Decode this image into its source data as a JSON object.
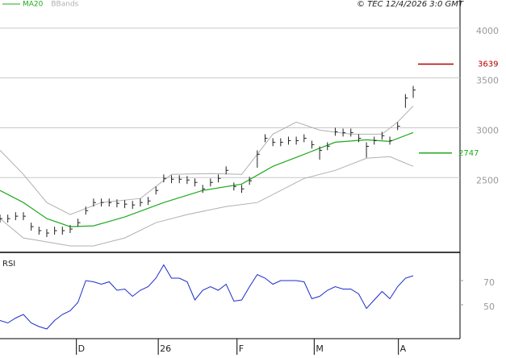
{
  "chart_data": [
    {
      "type": "ohlc",
      "copyright": "© TEC 12/4/2026 3:0 GMT",
      "x": [
        0,
        1,
        2,
        3,
        4,
        5,
        6,
        7,
        8,
        9,
        10,
        11,
        12,
        13,
        14,
        15,
        16,
        17,
        18,
        19,
        20,
        21,
        22,
        23,
        24,
        25,
        26,
        27,
        28,
        29,
        30,
        31,
        32,
        33,
        34,
        35,
        36,
        37,
        38,
        39,
        40,
        41,
        42,
        43,
        44,
        45,
        46,
        47,
        48,
        49,
        50,
        51,
        52,
        53
      ],
      "high": [
        2129,
        2129,
        2153,
        2153,
        2048,
        2008,
        1984,
        2008,
        2008,
        2024,
        2088,
        2209,
        2290,
        2290,
        2290,
        2282,
        2274,
        2266,
        2290,
        2306,
        2411,
        2532,
        2524,
        2524,
        2516,
        2492,
        2427,
        2492,
        2532,
        2613,
        2451,
        2427,
        2508,
        2774,
        2935,
        2895,
        2895,
        2911,
        2911,
        2935,
        2871,
        2814,
        2855,
        3000,
        2992,
        2992,
        2935,
        2854,
        2911,
        2960,
        2911,
        3056,
        3338,
        3420
      ],
      "low": [
        2049,
        2049,
        2073,
        2073,
        1968,
        1928,
        1904,
        1928,
        1928,
        1944,
        2008,
        2129,
        2210,
        2210,
        2210,
        2202,
        2194,
        2186,
        2210,
        2226,
        2331,
        2452,
        2444,
        2444,
        2436,
        2412,
        2347,
        2412,
        2452,
        2533,
        2371,
        2347,
        2428,
        2600,
        2855,
        2815,
        2815,
        2831,
        2831,
        2855,
        2791,
        2680,
        2775,
        2920,
        2912,
        2912,
        2855,
        2700,
        2831,
        2880,
        2831,
        2976,
        3200,
        3300
      ],
      "close": [
        2089,
        2089,
        2113,
        2113,
        2008,
        1968,
        1944,
        1968,
        1968,
        1984,
        2048,
        2169,
        2250,
        2250,
        2250,
        2242,
        2234,
        2226,
        2250,
        2266,
        2371,
        2492,
        2484,
        2484,
        2476,
        2452,
        2387,
        2452,
        2492,
        2573,
        2411,
        2387,
        2468,
        2734,
        2895,
        2855,
        2855,
        2871,
        2871,
        2895,
        2831,
        2774,
        2815,
        2960,
        2952,
        2952,
        2895,
        2814,
        2871,
        2920,
        2871,
        3016,
        3298,
        3379
      ],
      "bar_color": "#222222",
      "ma": {
        "name": "MA20",
        "color": "#1faa1f",
        "x": [
          0,
          3,
          6,
          9,
          12,
          16,
          21,
          26,
          31,
          35,
          39,
          43,
          47,
          50,
          53
        ],
        "values": [
          2371,
          2250,
          2089,
          2008,
          2016,
          2105,
          2250,
          2371,
          2435,
          2613,
          2734,
          2855,
          2879,
          2863,
          2952
        ]
      },
      "bands": {
        "name": "BBands",
        "color": "#b0b0b0",
        "upper": {
          "x": [
            0,
            3,
            6,
            9,
            13,
            18,
            22,
            27,
            31,
            35,
            38,
            41,
            45,
            49,
            51,
            53
          ],
          "values": [
            2774,
            2532,
            2250,
            2129,
            2250,
            2290,
            2532,
            2540,
            2532,
            2936,
            3057,
            2976,
            2936,
            2936,
            3057,
            3218
          ]
        },
        "lower": {
          "x": [
            0,
            3,
            6,
            9,
            12,
            16,
            20,
            24,
            29,
            33,
            39,
            43,
            47,
            50,
            53
          ],
          "values": [
            2089,
            1895,
            1855,
            1815,
            1815,
            1895,
            2048,
            2129,
            2210,
            2250,
            2492,
            2573,
            2694,
            2710,
            2613
          ]
        }
      },
      "levels": [
        {
          "value": 3639,
          "color": "#b00000"
        },
        {
          "value": 2747,
          "color": "#1faa1f"
        }
      ],
      "xlim": [
        0,
        59
      ],
      "ylim": [
        1750,
        4282
      ],
      "yticks": [
        2500,
        3000,
        3500,
        4000
      ],
      "grid": true
    },
    {
      "type": "line",
      "title": "RSI",
      "x": [
        0,
        1,
        2,
        3,
        4,
        5,
        6,
        7,
        8,
        9,
        10,
        11,
        12,
        13,
        14,
        15,
        16,
        17,
        18,
        19,
        20,
        21,
        22,
        23,
        24,
        25,
        26,
        27,
        28,
        29,
        30,
        31,
        32,
        33,
        34,
        35,
        36,
        37,
        38,
        39,
        40,
        41,
        42,
        43,
        44,
        45,
        46,
        47,
        48,
        49,
        50,
        51,
        52,
        53
      ],
      "values": [
        37,
        35,
        39,
        42,
        35,
        32,
        30,
        37,
        42,
        45,
        52,
        70,
        69,
        67,
        69,
        62,
        63,
        57,
        62,
        65,
        72,
        83,
        72,
        72,
        69,
        54,
        62,
        65,
        62,
        67,
        53,
        54,
        65,
        75,
        72,
        67,
        70,
        70,
        70,
        69,
        55,
        57,
        62,
        65,
        63,
        63,
        59,
        47,
        54,
        61,
        55,
        65,
        72,
        74
      ],
      "color": "#1c2ccc",
      "xlim": [
        0,
        59
      ],
      "ylim": [
        22,
        90
      ],
      "yticks": [
        50,
        70
      ],
      "xticks": [
        {
          "value": 9.8,
          "label": "D"
        },
        {
          "value": 20.3,
          "label": "26"
        },
        {
          "value": 30.4,
          "label": "F"
        },
        {
          "value": 40.3,
          "label": "M"
        },
        {
          "value": 51.1,
          "label": "A"
        }
      ]
    }
  ]
}
